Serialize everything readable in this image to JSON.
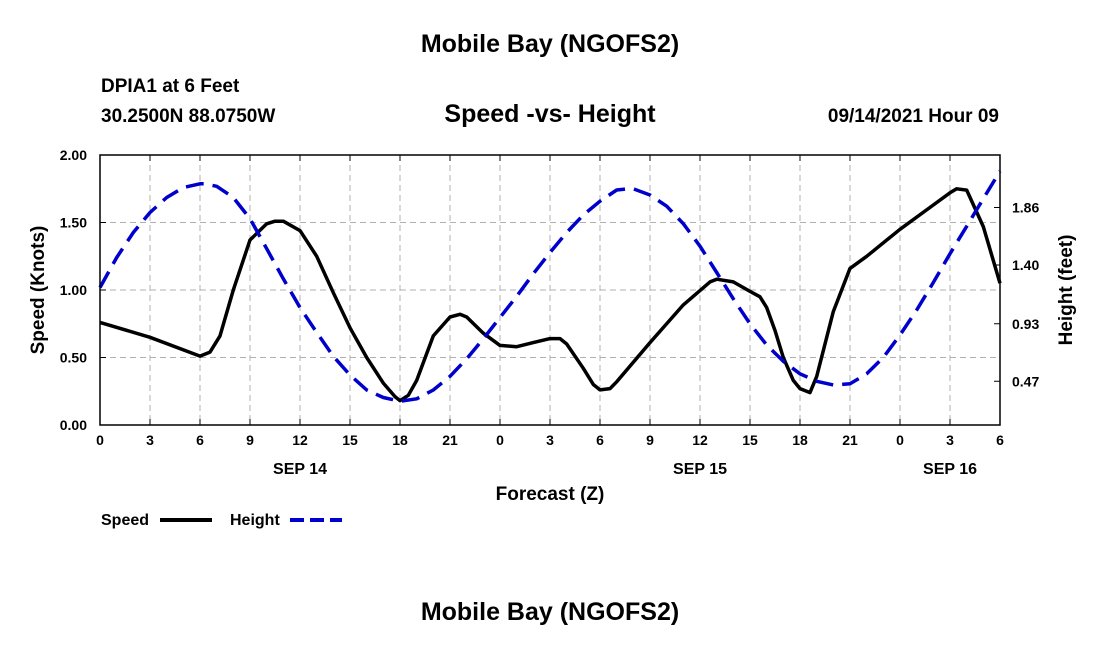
{
  "header": {
    "title": "Mobile Bay (NGOFS2)",
    "station": "DPIA1 at 6 Feet",
    "coordinates": "30.2500N  88.0750W",
    "subtitle": "Speed -vs- Height",
    "timestamp": "09/14/2021 Hour 09"
  },
  "footer": {
    "title": "Mobile Bay (NGOFS2)"
  },
  "chart_data": {
    "type": "line",
    "xlabel": "Forecast (Z)",
    "ylabel_left": "Speed (Knots)",
    "ylabel_right": "Height (feet)",
    "x_range_hours": [
      0,
      54
    ],
    "xlim_hours": [
      0,
      54
    ],
    "ylim_left": [
      0,
      2.0
    ],
    "ylim_right": [
      0.12,
      2.28
    ],
    "grid": true,
    "legend_placement": "bottom-left",
    "x_ticks": [
      {
        "x": 0,
        "label": "0"
      },
      {
        "x": 3,
        "label": "3"
      },
      {
        "x": 6,
        "label": "6"
      },
      {
        "x": 9,
        "label": "9"
      },
      {
        "x": 12,
        "label": "12"
      },
      {
        "x": 15,
        "label": "15"
      },
      {
        "x": 18,
        "label": "18"
      },
      {
        "x": 21,
        "label": "21"
      },
      {
        "x": 24,
        "label": "0"
      },
      {
        "x": 27,
        "label": "3"
      },
      {
        "x": 30,
        "label": "6"
      },
      {
        "x": 33,
        "label": "9"
      },
      {
        "x": 36,
        "label": "12"
      },
      {
        "x": 39,
        "label": "15"
      },
      {
        "x": 42,
        "label": "18"
      },
      {
        "x": 45,
        "label": "21"
      },
      {
        "x": 48,
        "label": "0"
      },
      {
        "x": 51,
        "label": "3"
      },
      {
        "x": 54,
        "label": "6"
      }
    ],
    "date_labels": [
      {
        "x": 12,
        "label": "SEP 14"
      },
      {
        "x": 36,
        "label": "SEP 15"
      },
      {
        "x": 51,
        "label": "SEP 16"
      }
    ],
    "y_ticks_left": [
      {
        "y": 0.0,
        "label": "0.00"
      },
      {
        "y": 0.5,
        "label": "0.50"
      },
      {
        "y": 1.0,
        "label": "1.00"
      },
      {
        "y": 1.5,
        "label": "1.50"
      },
      {
        "y": 2.0,
        "label": "2.00"
      }
    ],
    "y_ticks_right": [
      {
        "y": 0.47,
        "label": "0.47"
      },
      {
        "y": 0.93,
        "label": "0.93"
      },
      {
        "y": 1.4,
        "label": "1.40"
      },
      {
        "y": 1.86,
        "label": "1.86"
      }
    ],
    "series": [
      {
        "name": "Speed",
        "axis": "left",
        "color": "#000000",
        "style": "solid",
        "x": [
          0,
          3,
          6,
          6.6,
          7.2,
          8,
          9,
          10,
          10.5,
          11,
          12,
          13,
          14,
          15,
          16,
          17,
          17.7,
          18,
          18.5,
          19,
          20,
          21,
          21.6,
          22,
          23,
          24,
          25,
          26,
          27,
          27.6,
          28,
          29,
          29.6,
          30,
          30.6,
          31,
          33,
          35,
          36.6,
          37,
          38,
          39,
          39.6,
          40,
          40.5,
          41,
          41.6,
          42,
          42.6,
          43,
          44,
          45,
          46,
          48,
          50,
          51,
          51.4,
          52,
          53,
          54
        ],
        "y": [
          0.76,
          0.65,
          0.51,
          0.54,
          0.66,
          1.0,
          1.37,
          1.49,
          1.51,
          1.51,
          1.44,
          1.25,
          0.98,
          0.72,
          0.5,
          0.31,
          0.21,
          0.18,
          0.22,
          0.33,
          0.66,
          0.8,
          0.82,
          0.8,
          0.68,
          0.59,
          0.58,
          0.61,
          0.64,
          0.64,
          0.6,
          0.42,
          0.3,
          0.26,
          0.27,
          0.32,
          0.61,
          0.89,
          1.06,
          1.08,
          1.06,
          0.99,
          0.95,
          0.87,
          0.7,
          0.5,
          0.33,
          0.27,
          0.24,
          0.36,
          0.84,
          1.16,
          1.25,
          1.45,
          1.63,
          1.72,
          1.75,
          1.74,
          1.47,
          1.05
        ]
      },
      {
        "name": "Height",
        "axis": "right",
        "color": "#0000cc",
        "style": "dashed",
        "x": [
          0,
          1,
          2,
          3,
          4,
          5,
          6,
          6.3,
          7,
          8,
          9,
          10,
          11,
          12,
          13,
          14,
          15,
          16,
          17,
          18,
          19,
          20,
          21,
          22,
          23,
          24,
          25,
          26,
          27,
          28,
          29,
          30,
          31,
          31.7,
          32,
          33,
          34,
          35,
          36,
          37,
          38,
          39,
          40,
          41,
          42,
          43,
          44,
          45,
          46,
          47,
          48,
          49,
          50,
          51,
          52,
          53,
          54
        ],
        "y": [
          1.22,
          1.46,
          1.66,
          1.82,
          1.94,
          2.02,
          2.05,
          2.05,
          2.03,
          1.94,
          1.77,
          1.53,
          1.29,
          1.06,
          0.86,
          0.67,
          0.52,
          0.4,
          0.34,
          0.31,
          0.33,
          0.4,
          0.51,
          0.65,
          0.81,
          0.98,
          1.15,
          1.33,
          1.5,
          1.66,
          1.8,
          1.91,
          2.0,
          2.01,
          2.01,
          1.96,
          1.87,
          1.73,
          1.55,
          1.34,
          1.13,
          0.93,
          0.76,
          0.63,
          0.53,
          0.47,
          0.44,
          0.45,
          0.53,
          0.66,
          0.84,
          1.04,
          1.26,
          1.49,
          1.71,
          1.93,
          2.15
        ]
      }
    ]
  }
}
